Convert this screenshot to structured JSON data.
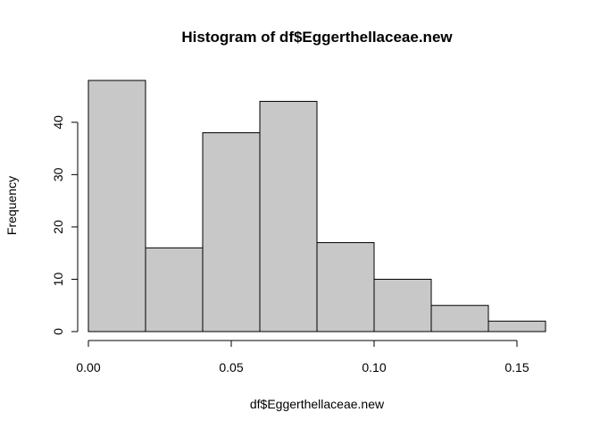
{
  "chart_data": {
    "type": "bar",
    "title": "Histogram of df$Eggerthellaceae.new",
    "xlabel": "df$Eggerthellaceae.new",
    "ylabel": "Frequency",
    "bins": [
      {
        "from": 0.0,
        "to": 0.02,
        "count": 48
      },
      {
        "from": 0.02,
        "to": 0.04,
        "count": 16
      },
      {
        "from": 0.04,
        "to": 0.06,
        "count": 38
      },
      {
        "from": 0.06,
        "to": 0.08,
        "count": 44
      },
      {
        "from": 0.08,
        "to": 0.1,
        "count": 17
      },
      {
        "from": 0.1,
        "to": 0.12,
        "count": 10
      },
      {
        "from": 0.12,
        "to": 0.14,
        "count": 5
      },
      {
        "from": 0.14,
        "to": 0.16,
        "count": 2
      }
    ],
    "xlim": [
      0.0,
      0.16
    ],
    "ylim": [
      0,
      48
    ],
    "xticks": [
      0.0,
      0.05,
      0.1,
      0.15
    ],
    "xtick_labels": [
      "0.00",
      "0.05",
      "0.10",
      "0.15"
    ],
    "yticks": [
      0,
      10,
      20,
      30,
      40
    ],
    "ytick_labels": [
      "0",
      "10",
      "20",
      "30",
      "40"
    ],
    "bar_color": "#c8c8c8",
    "grid": false,
    "legend": "none"
  }
}
